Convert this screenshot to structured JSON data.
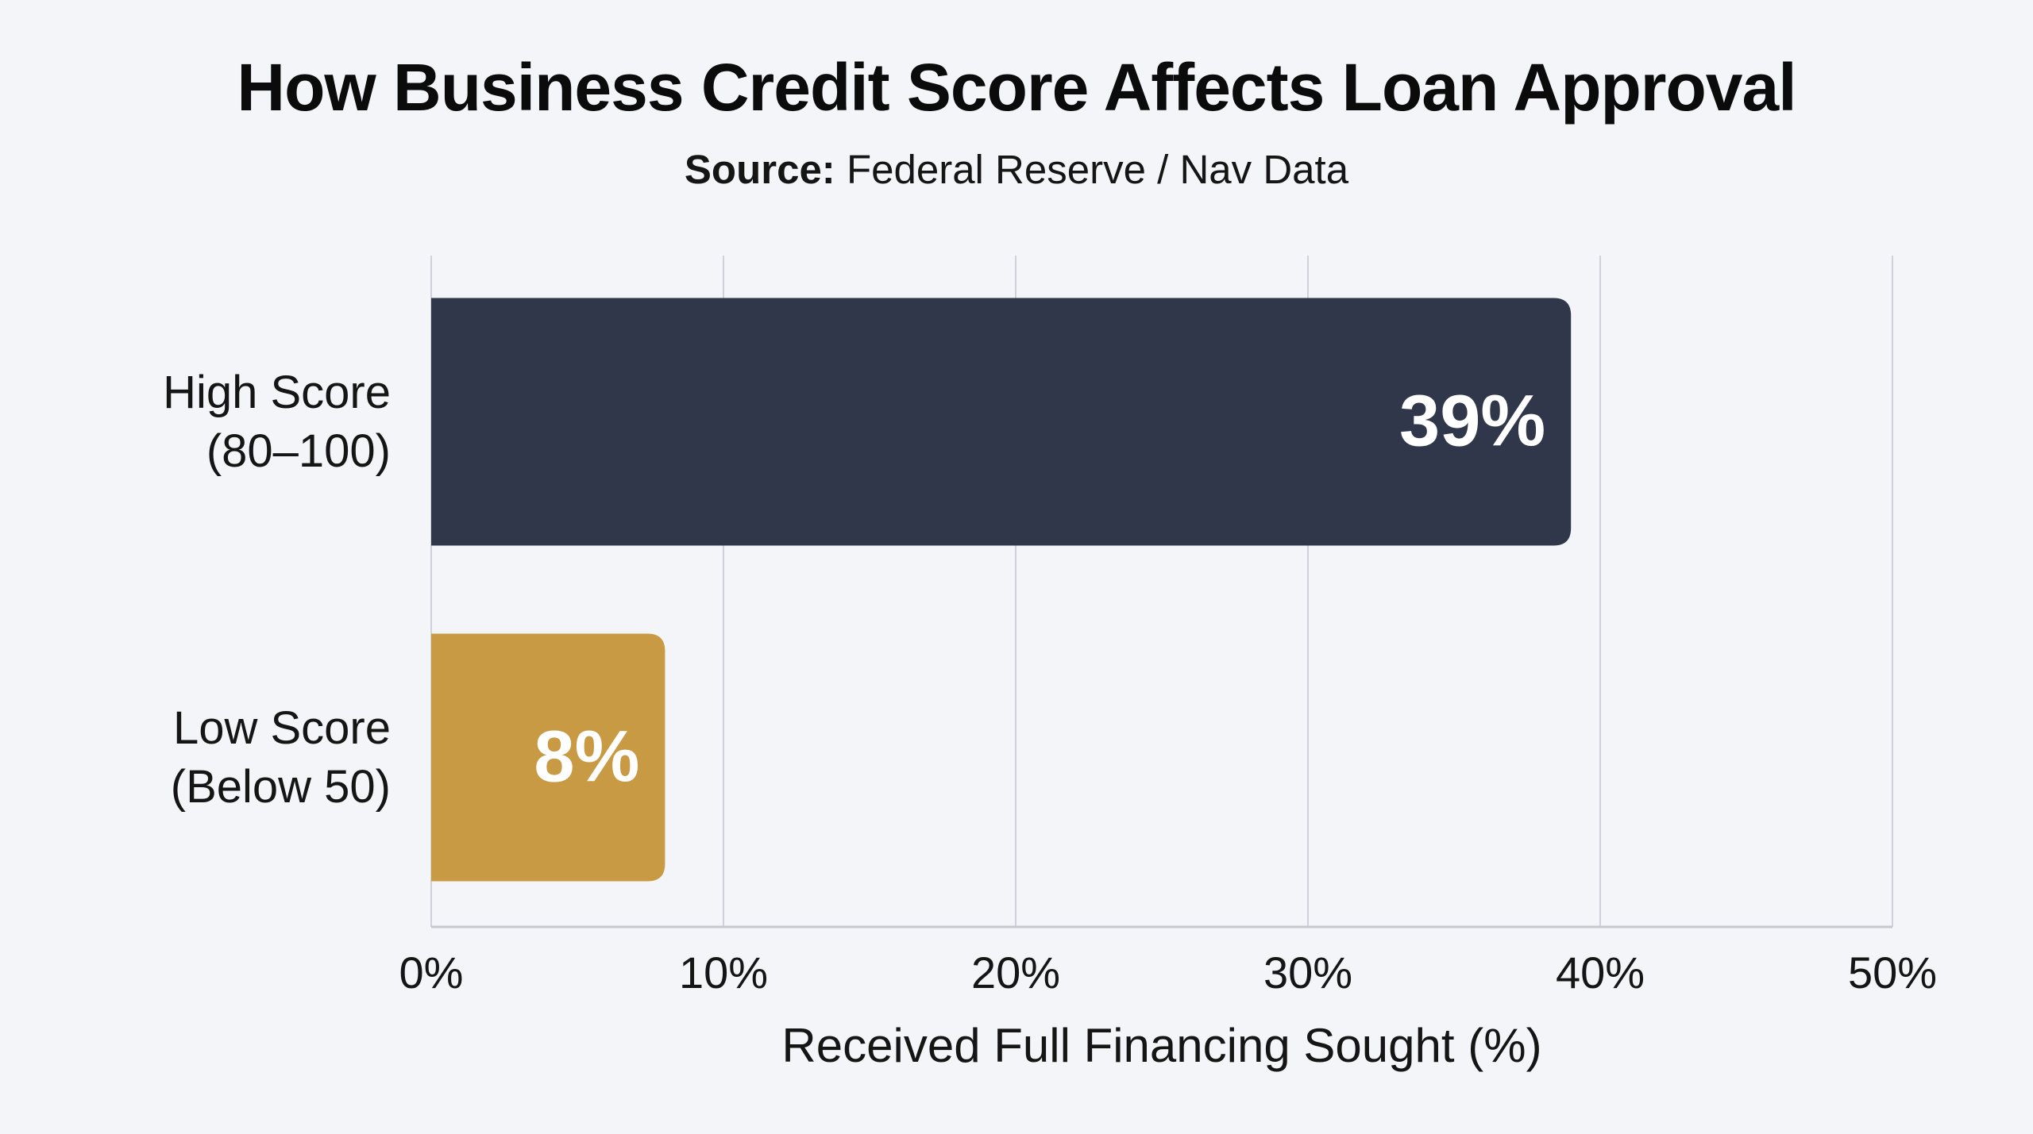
{
  "header": {
    "title": "How Business Credit Score Affects Loan Approval",
    "source_label": "Source:",
    "source_text": "Federal Reserve / Nav Data"
  },
  "chart_data": {
    "type": "bar",
    "orientation": "horizontal",
    "categories": [
      [
        "High Score",
        "(80–100)"
      ],
      [
        "Low Score",
        "(Below 50)"
      ]
    ],
    "values": [
      39,
      8
    ],
    "data_labels": [
      "39%",
      "8%"
    ],
    "colors": [
      "#30374a",
      "#c99a44"
    ],
    "xlabel": "Received Full Financing Sought (%)",
    "ylabel": "",
    "xlim": [
      0,
      50
    ],
    "x_ticks": [
      0,
      10,
      20,
      30,
      40,
      50
    ],
    "x_tick_labels": [
      "0%",
      "10%",
      "20%",
      "30%",
      "40%",
      "50%"
    ],
    "grid": true,
    "legend": "none"
  }
}
